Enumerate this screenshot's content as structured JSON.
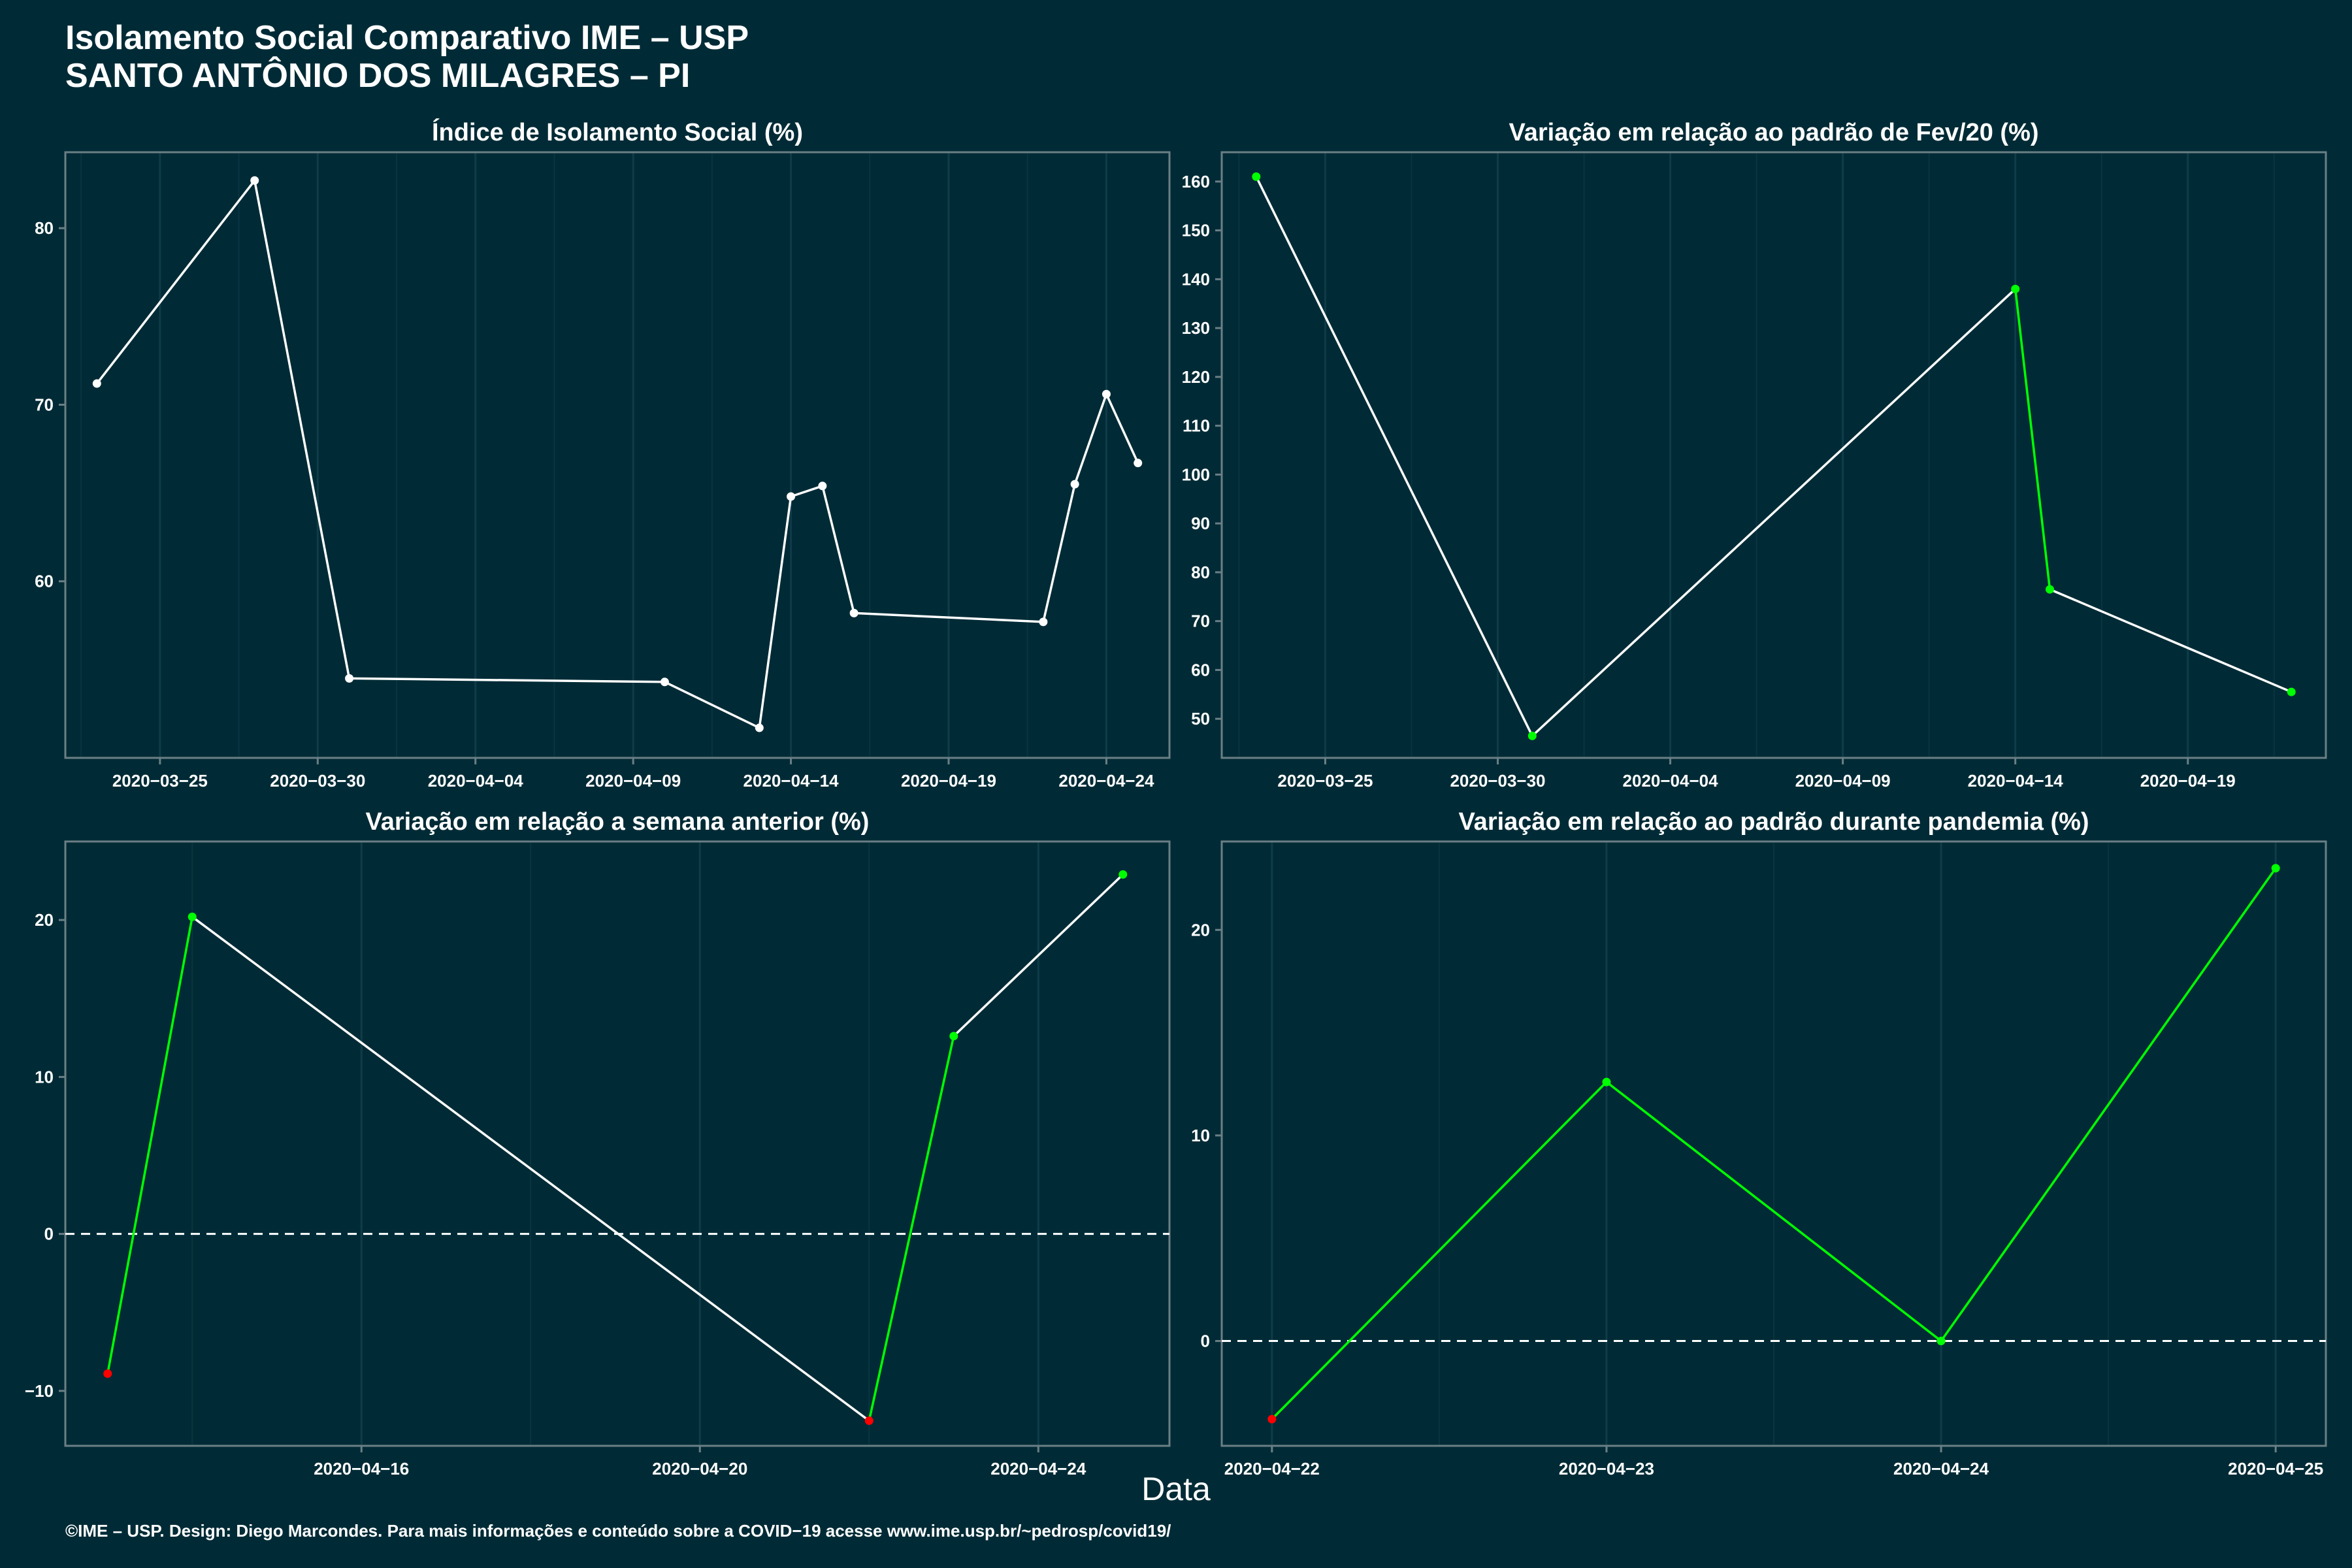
{
  "header": {
    "title_line1": "Isolamento Social Comparativo IME – USP",
    "title_line2": "SANTO ANTÔNIO DOS MILAGRES – PI"
  },
  "xlabel": "Data",
  "caption": "©IME – USP. Design: Diego Marcondes. Para mais informações e conteúdo sobre a COVID−19 acesse www.ime.usp.br/~pedrosp/covid19/",
  "colors": {
    "background": "#002b36",
    "line": "#ffffff",
    "positive": "#00ff00",
    "negative": "#ff0000"
  },
  "chart_data": [
    {
      "type": "line",
      "title": "Índice de Isolamento Social (%)",
      "x": [
        "2020-03-23",
        "2020-03-28",
        "2020-03-31",
        "2020-04-10",
        "2020-04-13",
        "2020-04-14",
        "2020-04-15",
        "2020-04-16",
        "2020-04-22",
        "2020-04-23",
        "2020-04-24",
        "2020-04-25"
      ],
      "y": [
        71.2,
        82.7,
        54.5,
        54.3,
        51.7,
        64.8,
        65.4,
        58.2,
        57.7,
        65.5,
        70.6,
        66.7
      ],
      "point_colors": [
        "white",
        "white",
        "white",
        "white",
        "white",
        "white",
        "white",
        "white",
        "white",
        "white",
        "white",
        "white"
      ],
      "xlim": [
        "2020-03-22",
        "2020-04-26"
      ],
      "ylim": [
        50.0,
        84.3
      ],
      "xticks": [
        "2020-03-25",
        "2020-03-30",
        "2020-04-04",
        "2020-04-09",
        "2020-04-14",
        "2020-04-19",
        "2020-04-24"
      ],
      "yticks": [
        60,
        70,
        80
      ],
      "zero_line": false
    },
    {
      "type": "line",
      "title": "Variação em relação ao padrão de Fev/20 (%)",
      "x": [
        "2020-03-23",
        "2020-03-31",
        "2020-04-14",
        "2020-04-15",
        "2020-04-22"
      ],
      "y": [
        161,
        46.5,
        138,
        76.5,
        55.5
      ],
      "point_colors": [
        "green",
        "green",
        "green",
        "green",
        "green"
      ],
      "xlim": [
        "2020-03-22",
        "2020-04-23"
      ],
      "ylim": [
        42,
        166
      ],
      "xticks": [
        "2020-03-25",
        "2020-03-30",
        "2020-04-04",
        "2020-04-09",
        "2020-04-14",
        "2020-04-19"
      ],
      "yticks": [
        50,
        60,
        70,
        80,
        90,
        100,
        110,
        120,
        130,
        140,
        150,
        160
      ],
      "zero_line": false
    },
    {
      "type": "line",
      "title": "Variação em relação a semana anterior (%)",
      "x": [
        "2020-04-13",
        "2020-04-14",
        "2020-04-22",
        "2020-04-23",
        "2020-04-25"
      ],
      "y": [
        -8.9,
        20.2,
        -11.9,
        12.6,
        22.9
      ],
      "point_colors": [
        "red",
        "green",
        "red",
        "green",
        "green"
      ],
      "xlim": [
        "2020-04-12.5",
        "2020-04-25.55"
      ],
      "ylim": [
        -13.5,
        25
      ],
      "xticks": [
        "2020-04-16",
        "2020-04-20",
        "2020-04-24"
      ],
      "yticks": [
        -10,
        0,
        10,
        20
      ],
      "zero_line": true
    },
    {
      "type": "line",
      "title": "Variação em relação ao padrão durante pandemia (%)",
      "x": [
        "2020-04-22",
        "2020-04-23",
        "2020-04-24",
        "2020-04-25"
      ],
      "y": [
        -3.8,
        12.6,
        0,
        23
      ],
      "point_colors": [
        "red",
        "green",
        "green",
        "green"
      ],
      "xlim": [
        "2020-04-21.85",
        "2020-04-25.15"
      ],
      "ylim": [
        -5.1,
        24.3
      ],
      "xticks": [
        "2020-04-22",
        "2020-04-23",
        "2020-04-24",
        "2020-04-25"
      ],
      "yticks": [
        0,
        10,
        20
      ],
      "zero_line": true
    }
  ]
}
